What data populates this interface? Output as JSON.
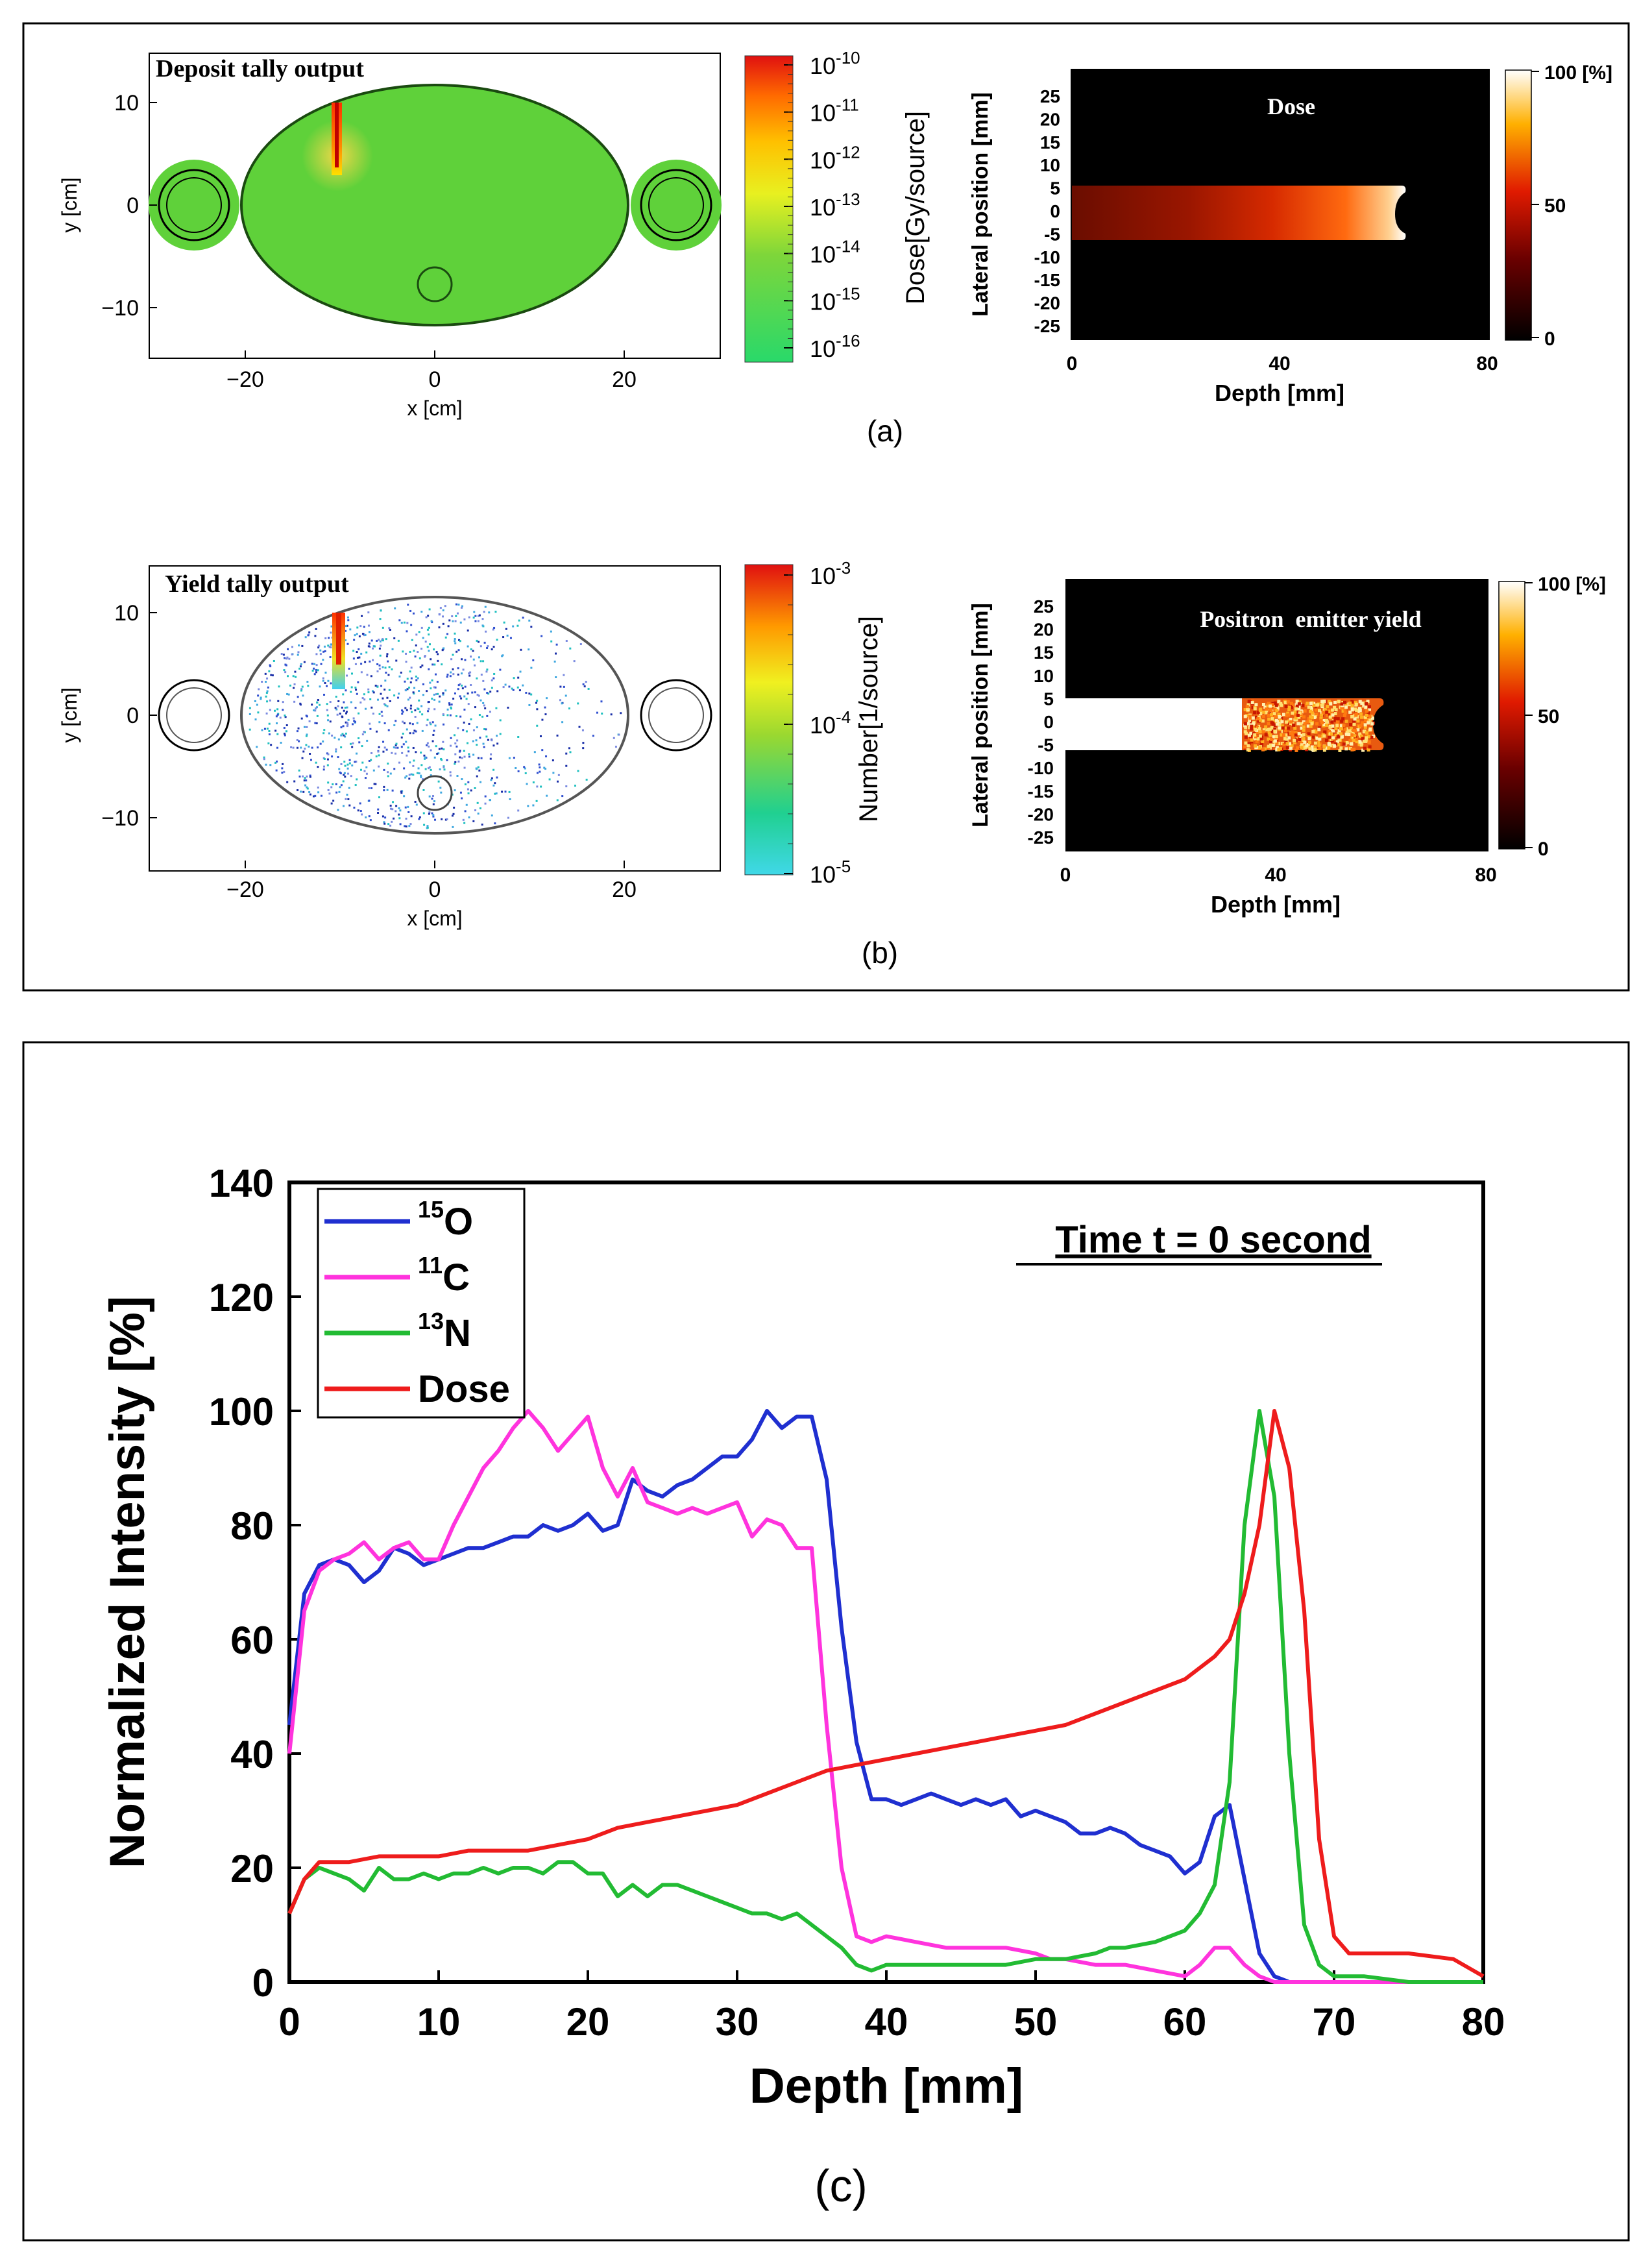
{
  "panel_a": {
    "tally_title": "Deposit tally output",
    "colorbar_label": "Dose[Gy/source]",
    "colorbar_ticks": [
      {
        "base": "10",
        "exp": "-10"
      },
      {
        "base": "10",
        "exp": "-11"
      },
      {
        "base": "10",
        "exp": "-12"
      },
      {
        "base": "10",
        "exp": "-13"
      },
      {
        "base": "10",
        "exp": "-14"
      },
      {
        "base": "10",
        "exp": "-15"
      },
      {
        "base": "10",
        "exp": "-16"
      }
    ],
    "map_title": "Dose",
    "map_colorbar_ticks": [
      "100 [%]",
      "50",
      "0"
    ],
    "caption": "(a)"
  },
  "panel_b": {
    "tally_title": "Yield tally output",
    "colorbar_label": "Number[1/source]",
    "colorbar_ticks": [
      {
        "base": "10",
        "exp": "-3"
      },
      {
        "base": "10",
        "exp": "-4"
      },
      {
        "base": "10",
        "exp": "-5"
      }
    ],
    "map_title": "Positron  emitter yield",
    "map_colorbar_ticks": [
      "100 [%]",
      "50",
      "0"
    ],
    "caption": "(b)"
  },
  "phantom_axes": {
    "xlabel": "x [cm]",
    "ylabel": "y [cm]",
    "xticks": [
      "−20",
      "0",
      "20"
    ],
    "yticks": [
      "10",
      "0",
      "−10"
    ]
  },
  "map_axes": {
    "xlabel": "Depth [mm]",
    "ylabel": "Lateral position [mm]",
    "xticks": [
      "0",
      "40",
      "80"
    ],
    "yticks": [
      "25",
      "20",
      "15",
      "10",
      "5",
      "0",
      "-5",
      "-10",
      "-15",
      "-20",
      "-25"
    ]
  },
  "colors": {
    "o15": "#1f2fd0",
    "c11": "#ff33dd",
    "n13": "#22bb33",
    "dose": "#ee1c1c",
    "phantom_green": "#5fd13a"
  },
  "chart_data": {
    "type": "line",
    "annotation": "Time t = 0 second",
    "caption": "(c)",
    "xlabel": "Depth [mm]",
    "ylabel": "Normalized Intensity [%]",
    "xlim": [
      0,
      80
    ],
    "ylim": [
      0,
      140
    ],
    "xticks": [
      0,
      10,
      20,
      30,
      40,
      50,
      60,
      70,
      80
    ],
    "yticks": [
      0,
      20,
      40,
      60,
      80,
      100,
      120,
      140
    ],
    "legend_placement": "top-left",
    "series": [
      {
        "name": "O",
        "legend_sup": "15",
        "color": "#1f2fd0",
        "points": [
          [
            0,
            45
          ],
          [
            1,
            68
          ],
          [
            2,
            73
          ],
          [
            3,
            74
          ],
          [
            4,
            73
          ],
          [
            5,
            70
          ],
          [
            6,
            72
          ],
          [
            7,
            76
          ],
          [
            8,
            75
          ],
          [
            9,
            73
          ],
          [
            10,
            74
          ],
          [
            11,
            75
          ],
          [
            12,
            76
          ],
          [
            13,
            76
          ],
          [
            14,
            77
          ],
          [
            15,
            78
          ],
          [
            16,
            78
          ],
          [
            17,
            80
          ],
          [
            18,
            79
          ],
          [
            19,
            80
          ],
          [
            20,
            82
          ],
          [
            21,
            79
          ],
          [
            22,
            80
          ],
          [
            23,
            88
          ],
          [
            24,
            86
          ],
          [
            25,
            85
          ],
          [
            26,
            87
          ],
          [
            27,
            88
          ],
          [
            28,
            90
          ],
          [
            29,
            92
          ],
          [
            30,
            92
          ],
          [
            31,
            95
          ],
          [
            32,
            100
          ],
          [
            33,
            97
          ],
          [
            34,
            99
          ],
          [
            35,
            99
          ],
          [
            36,
            88
          ],
          [
            37,
            62
          ],
          [
            38,
            42
          ],
          [
            39,
            32
          ],
          [
            40,
            32
          ],
          [
            41,
            31
          ],
          [
            42,
            32
          ],
          [
            43,
            33
          ],
          [
            44,
            32
          ],
          [
            45,
            31
          ],
          [
            46,
            32
          ],
          [
            47,
            31
          ],
          [
            48,
            32
          ],
          [
            49,
            29
          ],
          [
            50,
            30
          ],
          [
            51,
            29
          ],
          [
            52,
            28
          ],
          [
            53,
            26
          ],
          [
            54,
            26
          ],
          [
            55,
            27
          ],
          [
            56,
            26
          ],
          [
            57,
            24
          ],
          [
            58,
            23
          ],
          [
            59,
            22
          ],
          [
            60,
            19
          ],
          [
            61,
            21
          ],
          [
            62,
            29
          ],
          [
            63,
            31
          ],
          [
            64,
            18
          ],
          [
            65,
            5
          ],
          [
            66,
            1
          ],
          [
            67,
            0
          ],
          [
            68,
            0
          ],
          [
            70,
            0
          ],
          [
            75,
            0
          ],
          [
            80,
            0
          ]
        ]
      },
      {
        "name": "C",
        "legend_sup": "11",
        "color": "#ff33dd",
        "points": [
          [
            0,
            40
          ],
          [
            1,
            65
          ],
          [
            2,
            72
          ],
          [
            3,
            74
          ],
          [
            4,
            75
          ],
          [
            5,
            77
          ],
          [
            6,
            74
          ],
          [
            7,
            76
          ],
          [
            8,
            77
          ],
          [
            9,
            74
          ],
          [
            10,
            74
          ],
          [
            11,
            80
          ],
          [
            12,
            85
          ],
          [
            13,
            90
          ],
          [
            14,
            93
          ],
          [
            15,
            97
          ],
          [
            16,
            100
          ],
          [
            17,
            97
          ],
          [
            18,
            93
          ],
          [
            19,
            96
          ],
          [
            20,
            99
          ],
          [
            21,
            90
          ],
          [
            22,
            85
          ],
          [
            23,
            90
          ],
          [
            24,
            84
          ],
          [
            25,
            83
          ],
          [
            26,
            82
          ],
          [
            27,
            83
          ],
          [
            28,
            82
          ],
          [
            29,
            83
          ],
          [
            30,
            84
          ],
          [
            31,
            78
          ],
          [
            32,
            81
          ],
          [
            33,
            80
          ],
          [
            34,
            76
          ],
          [
            35,
            76
          ],
          [
            36,
            45
          ],
          [
            37,
            20
          ],
          [
            38,
            8
          ],
          [
            39,
            7
          ],
          [
            40,
            8
          ],
          [
            42,
            7
          ],
          [
            44,
            6
          ],
          [
            46,
            6
          ],
          [
            48,
            6
          ],
          [
            50,
            5
          ],
          [
            51,
            4
          ],
          [
            52,
            4
          ],
          [
            54,
            3
          ],
          [
            56,
            3
          ],
          [
            58,
            2
          ],
          [
            60,
            1
          ],
          [
            61,
            3
          ],
          [
            62,
            6
          ],
          [
            63,
            6
          ],
          [
            64,
            3
          ],
          [
            65,
            1
          ],
          [
            66,
            0
          ],
          [
            68,
            0
          ],
          [
            70,
            0
          ],
          [
            75,
            0
          ],
          [
            80,
            0
          ]
        ]
      },
      {
        "name": "N",
        "legend_sup": "13",
        "color": "#22bb33",
        "points": [
          [
            0,
            12
          ],
          [
            1,
            18
          ],
          [
            2,
            20
          ],
          [
            3,
            19
          ],
          [
            4,
            18
          ],
          [
            5,
            16
          ],
          [
            6,
            20
          ],
          [
            7,
            18
          ],
          [
            8,
            18
          ],
          [
            9,
            19
          ],
          [
            10,
            18
          ],
          [
            11,
            19
          ],
          [
            12,
            19
          ],
          [
            13,
            20
          ],
          [
            14,
            19
          ],
          [
            15,
            20
          ],
          [
            16,
            20
          ],
          [
            17,
            19
          ],
          [
            18,
            21
          ],
          [
            19,
            21
          ],
          [
            20,
            19
          ],
          [
            21,
            19
          ],
          [
            22,
            15
          ],
          [
            23,
            17
          ],
          [
            24,
            15
          ],
          [
            25,
            17
          ],
          [
            26,
            17
          ],
          [
            27,
            16
          ],
          [
            28,
            15
          ],
          [
            29,
            14
          ],
          [
            30,
            13
          ],
          [
            31,
            12
          ],
          [
            32,
            12
          ],
          [
            33,
            11
          ],
          [
            34,
            12
          ],
          [
            35,
            10
          ],
          [
            36,
            8
          ],
          [
            37,
            6
          ],
          [
            38,
            3
          ],
          [
            39,
            2
          ],
          [
            40,
            3
          ],
          [
            42,
            3
          ],
          [
            44,
            3
          ],
          [
            46,
            3
          ],
          [
            48,
            3
          ],
          [
            50,
            4
          ],
          [
            52,
            4
          ],
          [
            54,
            5
          ],
          [
            55,
            6
          ],
          [
            56,
            6
          ],
          [
            58,
            7
          ],
          [
            60,
            9
          ],
          [
            61,
            12
          ],
          [
            62,
            17
          ],
          [
            63,
            35
          ],
          [
            64,
            80
          ],
          [
            65,
            100
          ],
          [
            66,
            85
          ],
          [
            67,
            40
          ],
          [
            68,
            10
          ],
          [
            69,
            3
          ],
          [
            70,
            1
          ],
          [
            72,
            1
          ],
          [
            75,
            0
          ],
          [
            80,
            0
          ]
        ]
      },
      {
        "name": "Dose",
        "legend_sup": "",
        "color": "#ee1c1c",
        "points": [
          [
            0,
            12
          ],
          [
            1,
            18
          ],
          [
            2,
            21
          ],
          [
            4,
            21
          ],
          [
            6,
            22
          ],
          [
            8,
            22
          ],
          [
            10,
            22
          ],
          [
            12,
            23
          ],
          [
            14,
            23
          ],
          [
            16,
            23
          ],
          [
            18,
            24
          ],
          [
            20,
            25
          ],
          [
            22,
            27
          ],
          [
            24,
            28
          ],
          [
            26,
            29
          ],
          [
            28,
            30
          ],
          [
            30,
            31
          ],
          [
            32,
            33
          ],
          [
            34,
            35
          ],
          [
            36,
            37
          ],
          [
            38,
            38
          ],
          [
            40,
            39
          ],
          [
            42,
            40
          ],
          [
            44,
            41
          ],
          [
            46,
            42
          ],
          [
            48,
            43
          ],
          [
            50,
            44
          ],
          [
            52,
            45
          ],
          [
            54,
            47
          ],
          [
            56,
            49
          ],
          [
            58,
            51
          ],
          [
            60,
            53
          ],
          [
            61,
            55
          ],
          [
            62,
            57
          ],
          [
            63,
            60
          ],
          [
            64,
            68
          ],
          [
            65,
            80
          ],
          [
            66,
            100
          ],
          [
            67,
            90
          ],
          [
            68,
            65
          ],
          [
            69,
            25
          ],
          [
            70,
            8
          ],
          [
            71,
            5
          ],
          [
            72,
            5
          ],
          [
            75,
            5
          ],
          [
            78,
            4
          ],
          [
            80,
            1
          ]
        ]
      }
    ]
  }
}
